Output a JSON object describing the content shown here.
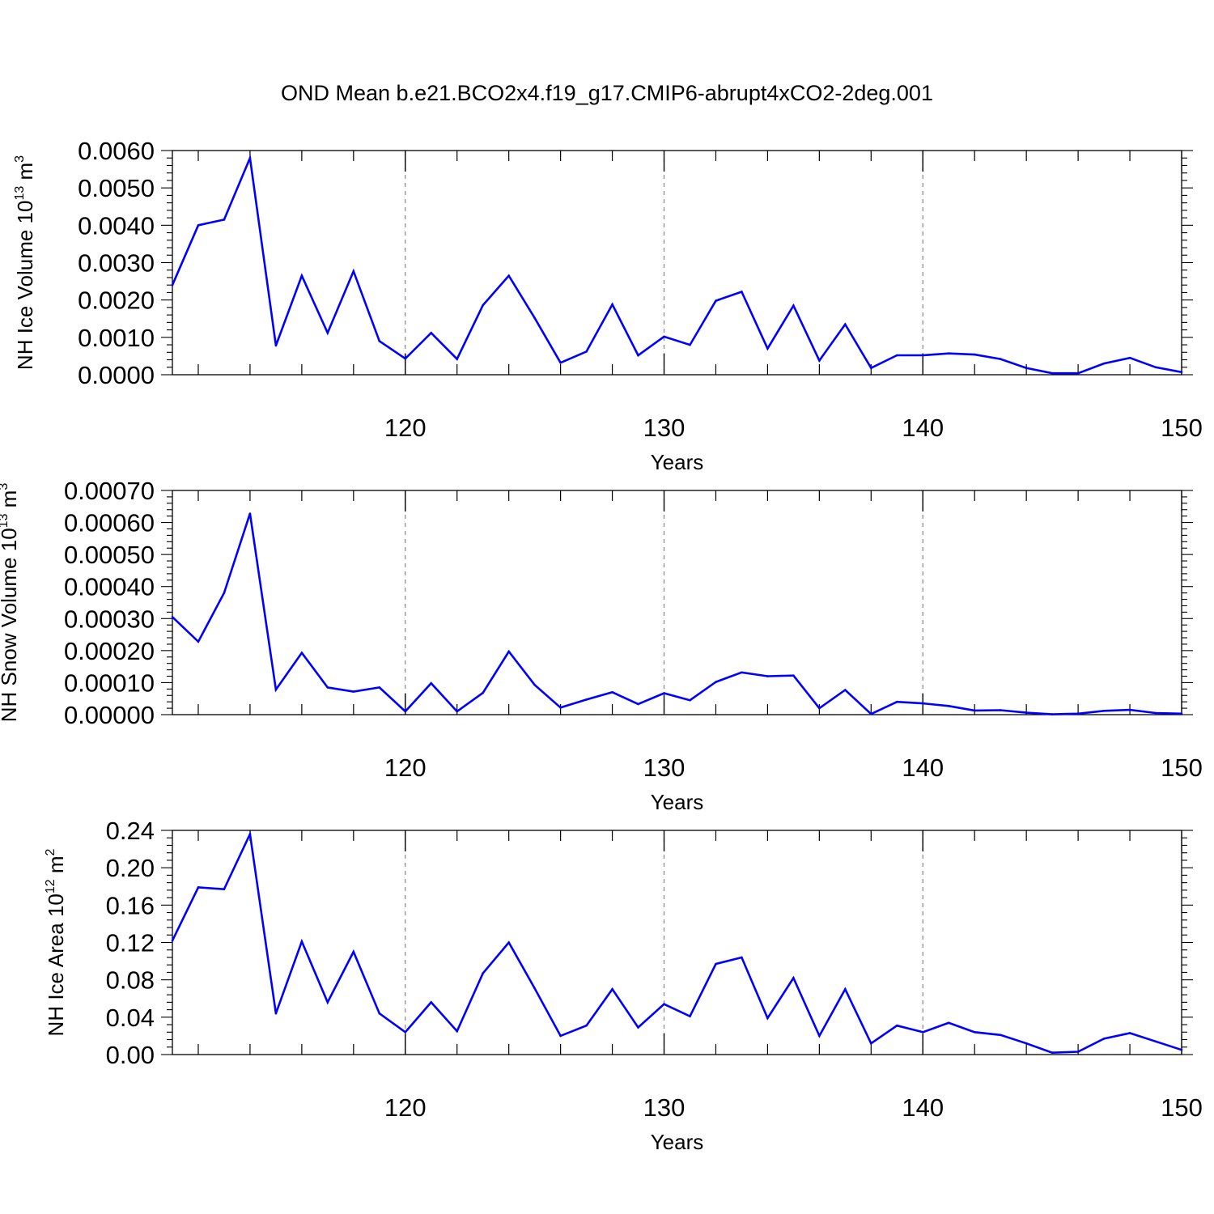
{
  "title": "OND Mean b.e21.BCO2x4.f19_g17.CMIP6-abrupt4xCO2-2deg.001",
  "colors": {
    "line": "#0000ff",
    "axis": "#000000",
    "grid": "#888888"
  },
  "chart_data": [
    {
      "type": "line",
      "xlabel": "Years",
      "ylabel": {
        "text": "NH Ice Volume 10",
        "exp": "13",
        "unit": " m",
        "unit_exp": "3"
      },
      "xlim": [
        111,
        150
      ],
      "ylim": [
        0,
        0.006
      ],
      "xticks": [
        "120",
        "130",
        "140",
        "150"
      ],
      "yticks": [
        "0.0000",
        "0.0010",
        "0.0020",
        "0.0030",
        "0.0040",
        "0.0050",
        "0.0060"
      ],
      "grid": "vertical dashed at major x ticks",
      "x": [
        111,
        112,
        113,
        114,
        115,
        116,
        117,
        118,
        119,
        120,
        121,
        122,
        123,
        124,
        125,
        126,
        127,
        128,
        129,
        130,
        131,
        132,
        133,
        134,
        135,
        136,
        137,
        138,
        139,
        140,
        141,
        142,
        143,
        144,
        145,
        146,
        147,
        148,
        149,
        150
      ],
      "values": [
        0.0024,
        0.004,
        0.00415,
        0.0058,
        0.00078,
        0.00265,
        0.00112,
        0.00277,
        0.0009,
        0.00043,
        0.00112,
        0.00042,
        0.00186,
        0.00265,
        0.00152,
        0.00032,
        0.00062,
        0.00188,
        0.00052,
        0.00102,
        0.0008,
        0.00198,
        0.00222,
        0.0007,
        0.00185,
        0.00038,
        0.00135,
        0.00018,
        0.00052,
        0.00052,
        0.00057,
        0.00054,
        0.00042,
        0.00018,
        4e-05,
        4e-05,
        0.0003,
        0.00045,
        0.0002,
        7e-05
      ]
    },
    {
      "type": "line",
      "xlabel": "Years",
      "ylabel": {
        "text": "NH Snow Volume 10",
        "exp": "13",
        "unit": " m",
        "unit_exp": "3"
      },
      "xlim": [
        111,
        150
      ],
      "ylim": [
        0,
        0.0007
      ],
      "xticks": [
        "120",
        "130",
        "140",
        "150"
      ],
      "yticks": [
        "0.00000",
        "0.00010",
        "0.00020",
        "0.00030",
        "0.00040",
        "0.00050",
        "0.00060",
        "0.00070"
      ],
      "grid": "vertical dashed at major x ticks",
      "x": [
        111,
        112,
        113,
        114,
        115,
        116,
        117,
        118,
        119,
        120,
        121,
        122,
        123,
        124,
        125,
        126,
        127,
        128,
        129,
        130,
        131,
        132,
        133,
        134,
        135,
        136,
        137,
        138,
        139,
        140,
        141,
        142,
        143,
        144,
        145,
        146,
        147,
        148,
        149,
        150
      ],
      "values": [
        0.000305,
        0.000228,
        0.00038,
        0.000628,
        7.8e-05,
        0.000193,
        8.5e-05,
        7.2e-05,
        8.5e-05,
        1e-05,
        9.8e-05,
        1e-05,
        6.8e-05,
        0.000197,
        9.3e-05,
        2.2e-05,
        4.7e-05,
        7e-05,
        3.3e-05,
        6.7e-05,
        4.5e-05,
        0.000102,
        0.000132,
        0.00012,
        0.000122,
        2e-05,
        7.7e-05,
        2e-06,
        4e-05,
        3.5e-05,
        2.7e-05,
        1.3e-05,
        1.4e-05,
        6e-06,
        1e-06,
        3e-06,
        1.2e-05,
        1.5e-05,
        5e-06,
        3e-06
      ]
    },
    {
      "type": "line",
      "xlabel": "Years",
      "ylabel": {
        "text": "NH Ice Area 10",
        "exp": "12",
        "unit": " m",
        "unit_exp": "2"
      },
      "xlim": [
        111,
        150
      ],
      "ylim": [
        0,
        0.24
      ],
      "xticks": [
        "120",
        "130",
        "140",
        "150"
      ],
      "yticks": [
        "0.00",
        "0.04",
        "0.08",
        "0.12",
        "0.16",
        "0.20",
        "0.24"
      ],
      "grid": "vertical dashed at major x ticks",
      "x": [
        111,
        112,
        113,
        114,
        115,
        116,
        117,
        118,
        119,
        120,
        121,
        122,
        123,
        124,
        125,
        126,
        127,
        128,
        129,
        130,
        131,
        132,
        133,
        134,
        135,
        136,
        137,
        138,
        139,
        140,
        141,
        142,
        143,
        144,
        145,
        146,
        147,
        148,
        149,
        150
      ],
      "values": [
        0.122,
        0.179,
        0.177,
        0.236,
        0.044,
        0.121,
        0.056,
        0.11,
        0.044,
        0.024,
        0.056,
        0.025,
        0.087,
        0.12,
        0.071,
        0.02,
        0.031,
        0.07,
        0.029,
        0.054,
        0.041,
        0.097,
        0.104,
        0.039,
        0.082,
        0.02,
        0.07,
        0.012,
        0.031,
        0.024,
        0.034,
        0.024,
        0.021,
        0.012,
        0.002,
        0.003,
        0.017,
        0.023,
        0.014,
        0.005
      ]
    }
  ]
}
